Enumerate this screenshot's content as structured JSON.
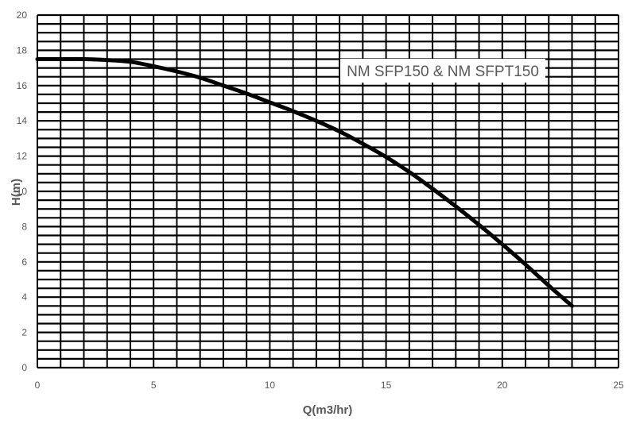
{
  "chart_data": {
    "type": "line",
    "title": "",
    "xlabel": "Q(m3/hr)",
    "ylabel": "H(m)",
    "xlim": [
      0,
      25
    ],
    "ylim": [
      0,
      20
    ],
    "x_ticks": [
      "0",
      "5",
      "10",
      "15",
      "20",
      "25"
    ],
    "y_ticks": [
      "0",
      "2",
      "4",
      "6",
      "8",
      "10",
      "12",
      "14",
      "16",
      "18",
      "20"
    ],
    "grid": true,
    "legend_position": "top-right",
    "series": [
      {
        "name": "NM SFP150 & NM SFPT150",
        "color": "#000000",
        "x": [
          0,
          1,
          2,
          3,
          4,
          5,
          6,
          7,
          8,
          9,
          10,
          11,
          12,
          13,
          14,
          15,
          16,
          17,
          18,
          19,
          20,
          21,
          22,
          23
        ],
        "y": [
          17.5,
          17.5,
          17.5,
          17.45,
          17.35,
          17.1,
          16.8,
          16.45,
          16.0,
          15.55,
          15.05,
          14.55,
          14.0,
          13.4,
          12.7,
          11.95,
          11.1,
          10.15,
          9.15,
          8.1,
          7.0,
          5.85,
          4.65,
          3.5
        ]
      }
    ]
  }
}
